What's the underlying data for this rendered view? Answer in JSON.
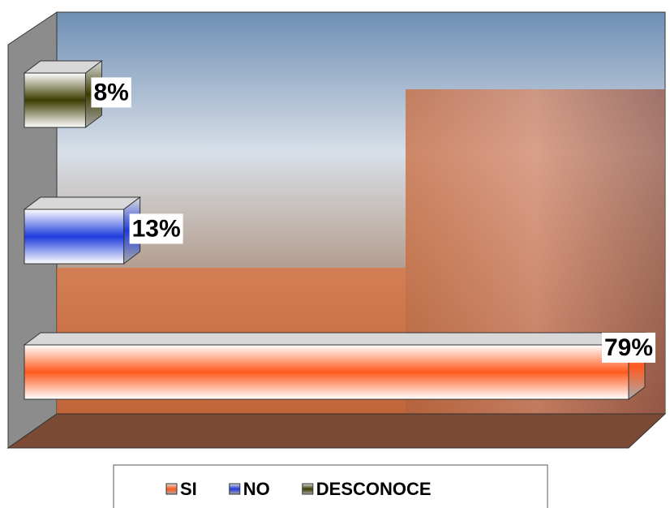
{
  "chart_data": {
    "type": "bar3d",
    "series": [
      {
        "name": "SI",
        "color": "#ff5a1e",
        "values": [
          79
        ],
        "value_labels": [
          "79%"
        ]
      },
      {
        "name": "NO",
        "color": "#1e3cdc",
        "values": [
          13
        ],
        "value_labels": [
          "13%"
        ]
      },
      {
        "name": "DESCONOCE",
        "color": "#3c3c00",
        "values": [
          8
        ],
        "value_labels": [
          "8%"
        ]
      }
    ]
  }
}
